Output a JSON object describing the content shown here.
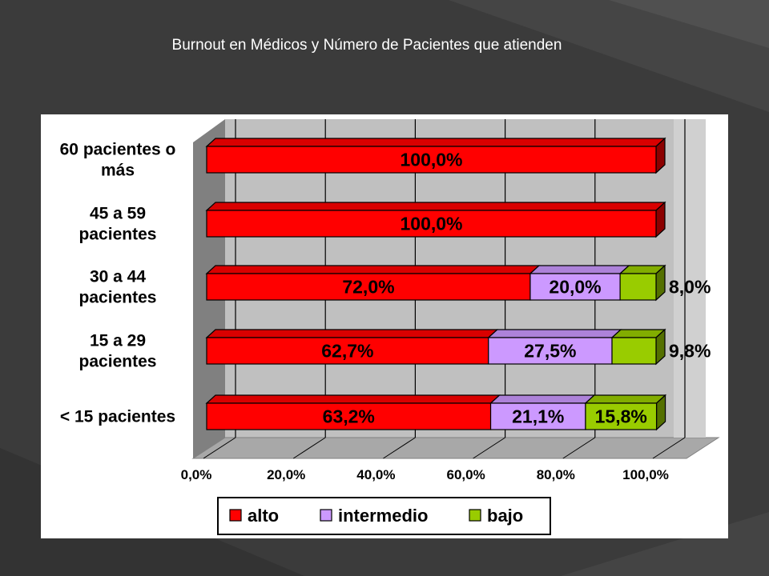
{
  "slide": {
    "title": "Burnout en Médicos y Número de Pacientes que atienden"
  },
  "chart_data": {
    "type": "bar",
    "orientation": "horizontal",
    "stacked": true,
    "percent_stacked": true,
    "categories": [
      [
        "60 pacientes o",
        "más"
      ],
      [
        "45 a 59",
        "pacientes"
      ],
      [
        "30 a 44",
        "pacientes"
      ],
      [
        "15 a 29",
        "pacientes"
      ],
      [
        "< 15 pacientes"
      ]
    ],
    "series": [
      {
        "name": "alto",
        "color": "#ff0000",
        "values": [
          100.0,
          100.0,
          72.0,
          62.7,
          63.2
        ],
        "labels": [
          "100,0%",
          "100,0%",
          "72,0%",
          "62,7%",
          "63,2%"
        ]
      },
      {
        "name": "intermedio",
        "color": "#cc99ff",
        "values": [
          0,
          0,
          20.0,
          27.5,
          21.1
        ],
        "labels": [
          "",
          "",
          "20,0%",
          "27,5%",
          "21,1%"
        ]
      },
      {
        "name": "bajo",
        "color": "#99cc00",
        "values": [
          0,
          0,
          8.0,
          9.8,
          15.8
        ],
        "labels": [
          "",
          "",
          "8,0%",
          "9,8%",
          "15,8%"
        ]
      }
    ],
    "x_ticks": [
      "0,0%",
      "20,0%",
      "40,0%",
      "60,0%",
      "80,0%",
      "100,0%"
    ],
    "xlim": [
      0,
      100
    ],
    "grid": true,
    "legend_position": "bottom"
  }
}
